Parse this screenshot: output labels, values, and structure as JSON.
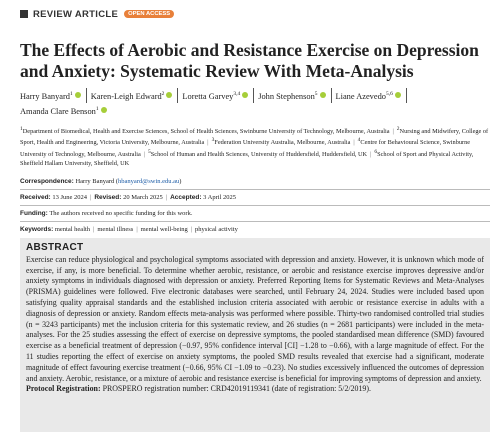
{
  "header": {
    "article_type": "REVIEW ARTICLE",
    "badge": "OPEN ACCESS"
  },
  "title": "The Effects of Aerobic and Resistance Exercise on Depression and Anxiety: Systematic Review With Meta-Analysis",
  "authors": [
    {
      "name": "Harry Banyard",
      "affil": "1"
    },
    {
      "name": "Karen-Leigh Edward",
      "affil": "2"
    },
    {
      "name": "Loretta Garvey",
      "affil": "3,4"
    },
    {
      "name": "John Stephenson",
      "affil": "5"
    },
    {
      "name": "Liane Azevedo",
      "affil": "5,6"
    },
    {
      "name": "Amanda Clare Benson",
      "affil": "1"
    }
  ],
  "affiliations": [
    {
      "num": "1",
      "text": "Department of Biomedical, Health and Exercise Sciences, School of Health Sciences, Swinburne University of Technology, Melbourne, Australia"
    },
    {
      "num": "2",
      "text": "Nursing and Midwifery, College of Sport, Health and Engineering, Victoria University, Melbourne, Australia"
    },
    {
      "num": "3",
      "text": "Federation University Australia, Melbourne, Australia"
    },
    {
      "num": "4",
      "text": "Centre for Behavioural Science, Swinburne University of Technology, Melbourne, Australia"
    },
    {
      "num": "5",
      "text": "School of Human and Health Sciences, University of Huddersfield, Huddersfield, UK"
    },
    {
      "num": "6",
      "text": "School of Sport and Physical Activity, Sheffield Hallam University, Sheffield, UK"
    }
  ],
  "correspondence": {
    "label": "Correspondence:",
    "text": "Harry Banyard (",
    "email": "hbanyard@swin.edu.au",
    "close": ")"
  },
  "dates": [
    {
      "label": "Received:",
      "value": "13 June 2024"
    },
    {
      "label": "Revised:",
      "value": "20 March 2025"
    },
    {
      "label": "Accepted:",
      "value": "3 April 2025"
    }
  ],
  "funding": {
    "label": "Funding:",
    "text": "The authors received no specific funding for this work."
  },
  "keywords": {
    "label": "Keywords:",
    "items": [
      "mental health",
      "mental illness",
      "mental well-being",
      "physical activity"
    ]
  },
  "abstract": {
    "heading": "ABSTRACT",
    "text": "Exercise can reduce physiological and psychological symptoms associated with depression and anxiety. However, it is unknown which mode of exercise, if any, is more beneficial. To determine whether aerobic, resistance, or aerobic and resistance exercise improves depressive and/or anxiety symptoms in individuals diagnosed with depression or anxiety. Preferred Reporting Items for Systematic Reviews and Meta-Analyses (PRISMA) guidelines were followed. Five electronic databases were searched, until February 24, 2024. Studies were included based upon satisfying quality appraisal standards and the established inclusion criteria associated with aerobic or resistance exercise in adults with a diagnosis of depression or anxiety. Random effects meta-analysis was performed where possible. Thirty-two randomised controlled trial studies (n = 3243 participants) met the inclusion criteria for this systematic review, and 26 studies (n = 2681 participants) were included in the meta-analyses. For the 25 studies assessing the effect of exercise on depressive symptoms, the pooled standardised mean difference (SMD) favoured exercise as a beneficial treatment of depression (−0.97, 95% confidence interval [CI] −1.28 to −0.66), with a large magnitude of effect. For the 11 studies reporting the effect of exercise on anxiety symptoms, the pooled SMD results revealed that exercise had a significant, moderate magnitude of effect favouring exercise treatment (−0.66, 95% CI −1.09 to −0.23). No studies excessively influenced the outcomes of depression and anxiety. Aerobic, resistance, or a mixture of aerobic and resistance exercise is beneficial for improving symptoms of depression and anxiety.",
    "protocol_label": "Protocol Registration:",
    "protocol_text": "PROSPERO registration number: CRD42019119341 (date of registration: 5/2/2019)."
  }
}
